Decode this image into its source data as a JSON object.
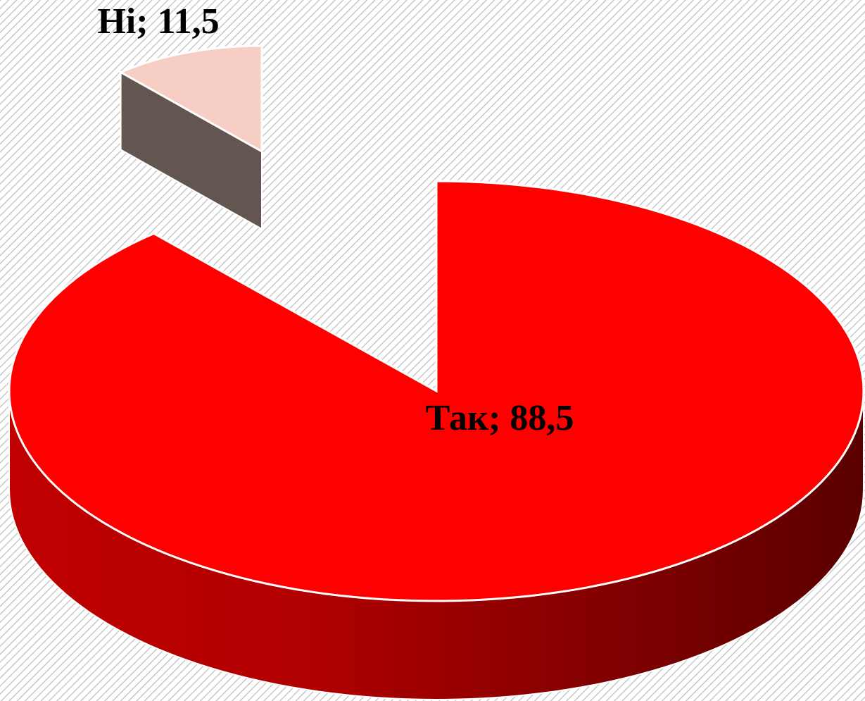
{
  "chart_data": {
    "type": "pie",
    "categories": [
      "Так",
      "Ні"
    ],
    "values": [
      88.5,
      11.5
    ],
    "value_labels": [
      "Так; 88,5",
      "Ні; 11,5"
    ],
    "colors": [
      "#ff0000",
      "#f6cec3"
    ]
  }
}
